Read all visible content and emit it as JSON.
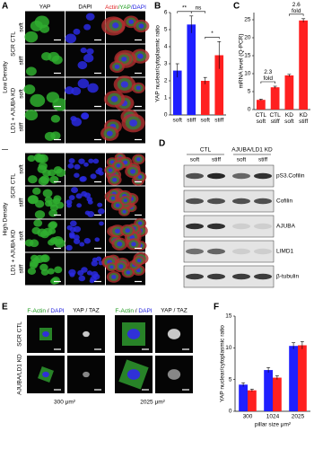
{
  "panel_labels": [
    "A",
    "B",
    "C",
    "D",
    "E",
    "F"
  ],
  "panel_a": {
    "columns": [
      "YAP",
      "DAPI",
      "Actin/YAP/DAPI"
    ],
    "densities": [
      "Low Density",
      "High Density"
    ],
    "groups": [
      "SCR CTL",
      "LD1 + AJUBA KD"
    ],
    "conditions": [
      "soft",
      "stiff"
    ]
  },
  "panel_d": {
    "groups": [
      "CTL",
      "AJUBA/LD1 KD"
    ],
    "conditions": [
      "soft",
      "stiff"
    ],
    "proteins": [
      "pS3.Cofilin",
      "Cofilin",
      "AJUBA",
      "LIMD1",
      "β-tubulin"
    ]
  },
  "panel_e": {
    "stains": [
      "F-Actin / DAPI",
      "YAP / TAZ"
    ],
    "rows": [
      "SCR CTL",
      "AJUBA/LD1 KD"
    ],
    "sizes": [
      "300 μm²",
      "2025 μm²"
    ]
  },
  "chart_data": [
    {
      "type": "bar",
      "y_label": "YAP nuclear/cytoplasmic ratio",
      "categories": [
        "soft",
        "stiff",
        "soft",
        "stiff"
      ],
      "values": [
        2.6,
        5.3,
        2.0,
        3.5
      ],
      "errors": [
        0.4,
        0.5,
        0.2,
        0.8
      ],
      "colors": [
        "#1f1fff",
        "#1f1fff",
        "#ff2020",
        "#ff2020"
      ],
      "ylim": [
        0,
        6
      ],
      "yticks": [
        0,
        1,
        2,
        3,
        4,
        5,
        6
      ],
      "annotations": [
        "**",
        "ns",
        "*"
      ]
    },
    {
      "type": "bar",
      "y_label": "mRNA level (Q-PCR)",
      "categories": [
        "CTL soft",
        "CTL stiff",
        "KD soft",
        "KD stiff"
      ],
      "values": [
        2.7,
        6.2,
        9.5,
        24.8
      ],
      "errors": [
        0.2,
        0.3,
        0.3,
        0.5
      ],
      "colors": [
        "#ff2020",
        "#ff2020",
        "#ff2020",
        "#ff2020"
      ],
      "ylim": [
        0,
        27
      ],
      "yticks": [
        0,
        5,
        10,
        15,
        20,
        25
      ],
      "annotations": [
        "2.3 fold",
        "2.6 fold"
      ]
    },
    {
      "type": "grouped_bar",
      "y_label": "YAP nuclear/cytoplasmic ratio",
      "x_label": "pillar size μm²",
      "categories": [
        "300",
        "1024",
        "2025"
      ],
      "series": [
        {
          "color": "#1f1fff",
          "values": [
            4.2,
            6.5,
            10.3
          ],
          "errors": [
            0.3,
            0.4,
            0.5
          ]
        },
        {
          "color": "#ff2020",
          "values": [
            3.3,
            5.3,
            10.4
          ],
          "errors": [
            0.2,
            0.3,
            0.6
          ]
        }
      ],
      "ylim": [
        0,
        15
      ],
      "yticks": [
        0,
        5,
        10,
        15
      ]
    }
  ]
}
